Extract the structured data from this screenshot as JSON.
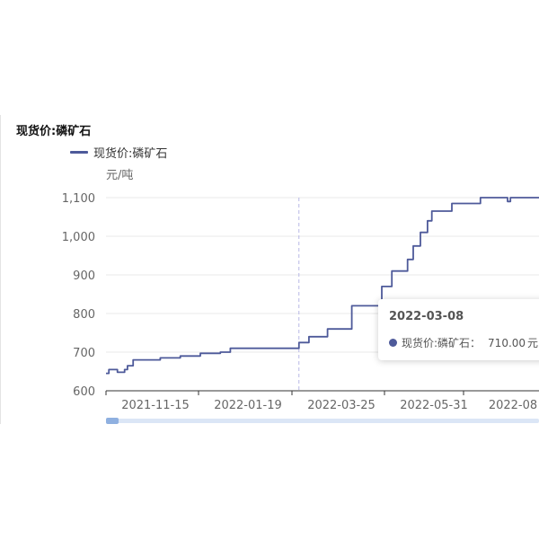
{
  "panel": {
    "title": "现货价:磷矿石"
  },
  "legend": {
    "label": "现货价:磷矿石"
  },
  "colors": {
    "line": "#4e5a9a",
    "grid": "#e8e8e8",
    "axis": "#666666",
    "crosshair": "#b8b8e6"
  },
  "chart_data": {
    "type": "line",
    "title": "",
    "ylabel": "元/吨",
    "xlabel": "",
    "ylim": [
      600,
      1100
    ],
    "yticks": [
      "600",
      "700",
      "800",
      "900",
      "1,000",
      "1,100"
    ],
    "xticks": [
      "2021-11-15",
      "2022-01-19",
      "2022-03-25",
      "2022-05-31",
      "2022-08"
    ],
    "grid": true,
    "legend_position": "top-left",
    "series": [
      {
        "name": "现货价:磷矿石",
        "points": [
          [
            "2021-10-26",
            645
          ],
          [
            "2021-11-01",
            655
          ],
          [
            "2021-11-06",
            648
          ],
          [
            "2021-11-08",
            655
          ],
          [
            "2021-11-12",
            665
          ],
          [
            "2021-12-01",
            680
          ],
          [
            "2021-12-15",
            685
          ],
          [
            "2021-12-29",
            690
          ],
          [
            "2022-01-12",
            697
          ],
          [
            "2022-01-19",
            700
          ],
          [
            "2022-02-15",
            710
          ],
          [
            "2022-03-08",
            710
          ],
          [
            "2022-03-15",
            725
          ],
          [
            "2022-03-28",
            740
          ],
          [
            "2022-04-14",
            760
          ],
          [
            "2022-05-05",
            820
          ],
          [
            "2022-05-12",
            870
          ],
          [
            "2022-05-23",
            910
          ],
          [
            "2022-05-27",
            940
          ],
          [
            "2022-06-01",
            975
          ],
          [
            "2022-06-06",
            1010
          ],
          [
            "2022-06-09",
            1040
          ],
          [
            "2022-06-23",
            1065
          ],
          [
            "2022-07-13",
            1085
          ],
          [
            "2022-08-01",
            1100
          ],
          [
            "2022-08-03",
            1090
          ],
          [
            "2022-08-05",
            1100
          ],
          [
            "2022-08-17",
            1100
          ]
        ]
      }
    ]
  },
  "tooltip": {
    "date": "2022-03-08",
    "label": "现货价:磷矿石：",
    "value": "710.00",
    "unit": "元"
  }
}
